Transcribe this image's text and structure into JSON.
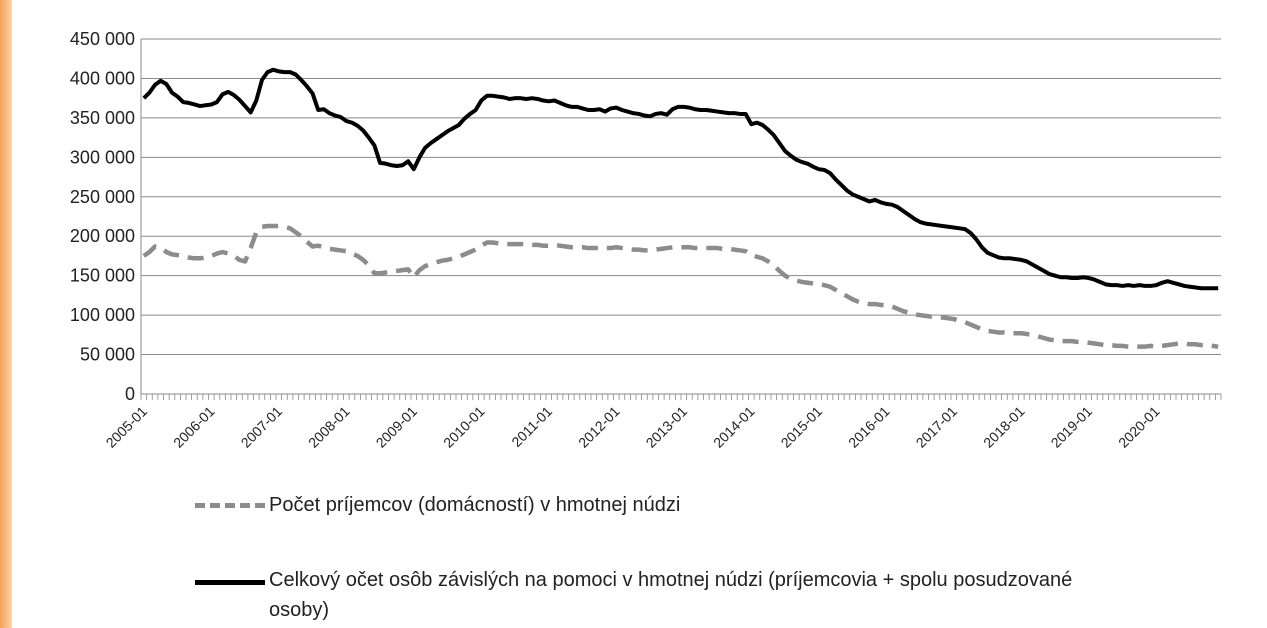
{
  "chart_data": {
    "type": "line",
    "categories": [
      "2005-01",
      null,
      null,
      null,
      null,
      null,
      null,
      null,
      null,
      null,
      null,
      null,
      "2006-01",
      null,
      null,
      null,
      null,
      null,
      null,
      null,
      null,
      null,
      null,
      null,
      "2007-01",
      null,
      null,
      null,
      null,
      null,
      null,
      null,
      null,
      null,
      null,
      null,
      "2008-01",
      null,
      null,
      null,
      null,
      null,
      null,
      null,
      null,
      null,
      null,
      null,
      "2009-01",
      null,
      null,
      null,
      null,
      null,
      null,
      null,
      null,
      null,
      null,
      null,
      "2010-01",
      null,
      null,
      null,
      null,
      null,
      null,
      null,
      null,
      null,
      null,
      null,
      "2011-01",
      null,
      null,
      null,
      null,
      null,
      null,
      null,
      null,
      null,
      null,
      null,
      "2012-01",
      null,
      null,
      null,
      null,
      null,
      null,
      null,
      null,
      null,
      null,
      null,
      "2013-01",
      null,
      null,
      null,
      null,
      null,
      null,
      null,
      null,
      null,
      null,
      null,
      "2014-01",
      null,
      null,
      null,
      null,
      null,
      null,
      null,
      null,
      null,
      null,
      null,
      "2015-01",
      null,
      null,
      null,
      null,
      null,
      null,
      null,
      null,
      null,
      null,
      null,
      "2016-01",
      null,
      null,
      null,
      null,
      null,
      null,
      null,
      null,
      null,
      null,
      null,
      "2017-01",
      null,
      null,
      null,
      null,
      null,
      null,
      null,
      null,
      null,
      null,
      null,
      "2018-01",
      null,
      null,
      null,
      null,
      null,
      null,
      null,
      null,
      null,
      null,
      null,
      "2019-01",
      null,
      null,
      null,
      null,
      null,
      null,
      null,
      null,
      null,
      null,
      null,
      "2020-01",
      null,
      null,
      null,
      null,
      null,
      null,
      null,
      null,
      null,
      null,
      null
    ],
    "series": [
      {
        "name": "Počet príjemcov (domácností) v hmotnej núdzi",
        "color": "#8c8c8c",
        "dash": true,
        "values": [
          175000,
          180000,
          187000,
          186000,
          180000,
          177000,
          176000,
          175000,
          173000,
          172000,
          172000,
          173000,
          175000,
          178000,
          180000,
          178000,
          175000,
          170000,
          168000,
          185000,
          205000,
          212000,
          213000,
          213000,
          213000,
          212000,
          210000,
          205000,
          200000,
          193000,
          187000,
          188000,
          186000,
          184000,
          183000,
          182000,
          181000,
          178000,
          175000,
          170000,
          163000,
          153000,
          153000,
          154000,
          155000,
          156000,
          157000,
          158000,
          148000,
          157000,
          162000,
          165000,
          167000,
          169000,
          170000,
          172000,
          174000,
          177000,
          180000,
          183000,
          188000,
          192000,
          192000,
          191000,
          190000,
          190000,
          190000,
          190000,
          190000,
          189000,
          189000,
          188000,
          188000,
          189000,
          188000,
          187000,
          186000,
          186000,
          186000,
          185000,
          185000,
          185000,
          185000,
          185000,
          186000,
          185000,
          184000,
          183000,
          183000,
          182000,
          182000,
          183000,
          184000,
          185000,
          186000,
          186000,
          186000,
          186000,
          185000,
          185000,
          185000,
          185000,
          185000,
          184000,
          184000,
          183000,
          182000,
          181000,
          176000,
          174000,
          172000,
          168000,
          163000,
          156000,
          150000,
          146000,
          144000,
          142000,
          141000,
          140000,
          139000,
          138000,
          136000,
          132000,
          128000,
          124000,
          120000,
          117000,
          115000,
          114000,
          114000,
          113000,
          112000,
          111000,
          108000,
          105000,
          103000,
          101000,
          100000,
          99000,
          98000,
          97000,
          97000,
          96000,
          95000,
          93000,
          91000,
          88000,
          85000,
          82000,
          80000,
          79000,
          78000,
          78000,
          77000,
          77000,
          77000,
          76000,
          75000,
          73000,
          71000,
          69000,
          68000,
          67000,
          67000,
          67000,
          66000,
          66000,
          65000,
          64000,
          63000,
          62000,
          62000,
          61000,
          61000,
          60000,
          60000,
          60000,
          60000,
          61000,
          60000,
          61000,
          62000,
          63000,
          64000,
          64000,
          63000,
          63000,
          62000,
          62000,
          61000,
          60000
        ]
      },
      {
        "name": "Celkový očet osôb závislých na pomoci v hmotnej núdzi (príjemcovia + spolu posudzované osoby)",
        "color": "#000000",
        "dash": false,
        "values": [
          375000,
          382000,
          392000,
          397000,
          393000,
          382000,
          377000,
          370000,
          369000,
          367000,
          365000,
          366000,
          367000,
          370000,
          380000,
          383000,
          379000,
          373000,
          365000,
          357000,
          372000,
          398000,
          408000,
          411000,
          409000,
          408000,
          408000,
          405000,
          398000,
          390000,
          381000,
          360000,
          361000,
          356000,
          353000,
          351000,
          346000,
          344000,
          340000,
          334000,
          325000,
          315000,
          293000,
          292000,
          290000,
          289000,
          290000,
          295000,
          285000,
          300000,
          312000,
          318000,
          323000,
          328000,
          333000,
          337000,
          341000,
          349000,
          355000,
          360000,
          372000,
          378000,
          378000,
          377000,
          376000,
          374000,
          375000,
          375000,
          374000,
          375000,
          374000,
          372000,
          371000,
          372000,
          369000,
          366000,
          364000,
          364000,
          362000,
          360000,
          360000,
          361000,
          358000,
          362000,
          363000,
          360000,
          358000,
          356000,
          355000,
          353000,
          352000,
          355000,
          356000,
          354000,
          361000,
          364000,
          364000,
          363000,
          361000,
          360000,
          360000,
          359000,
          358000,
          357000,
          356000,
          356000,
          355000,
          355000,
          342000,
          344000,
          341000,
          335000,
          328000,
          318000,
          308000,
          302000,
          297000,
          294000,
          292000,
          288000,
          285000,
          284000,
          280000,
          272000,
          265000,
          258000,
          253000,
          250000,
          247000,
          244000,
          246000,
          243000,
          241000,
          240000,
          237000,
          232000,
          227000,
          222000,
          218000,
          216000,
          215000,
          214000,
          213000,
          212000,
          211000,
          210000,
          209000,
          204000,
          196000,
          186000,
          179000,
          176000,
          173000,
          172000,
          172000,
          171000,
          170000,
          168000,
          164000,
          160000,
          156000,
          152000,
          150000,
          148000,
          148000,
          147000,
          147000,
          148000,
          147000,
          145000,
          142000,
          139000,
          138000,
          138000,
          137000,
          138000,
          137000,
          138000,
          137000,
          137000,
          138000,
          141000,
          143000,
          141000,
          139000,
          137000,
          136000,
          135000,
          134000,
          134000,
          134000,
          134000
        ]
      }
    ],
    "ylim": [
      0,
      450000
    ],
    "yticks": [
      0,
      {
        "value": 50000,
        "label": "50 000"
      },
      {
        "value": 100000,
        "label": "100 000"
      },
      {
        "value": 150000,
        "label": "150 000"
      },
      {
        "value": 200000,
        "label": "200 000"
      },
      {
        "value": 250000,
        "label": "250 000"
      },
      {
        "value": 300000,
        "label": "300 000"
      },
      {
        "value": 350000,
        "label": "350 000"
      },
      {
        "value": 400000,
        "label": "400 000"
      },
      {
        "value": 450000,
        "label": "450 000"
      }
    ],
    "grid": true
  }
}
